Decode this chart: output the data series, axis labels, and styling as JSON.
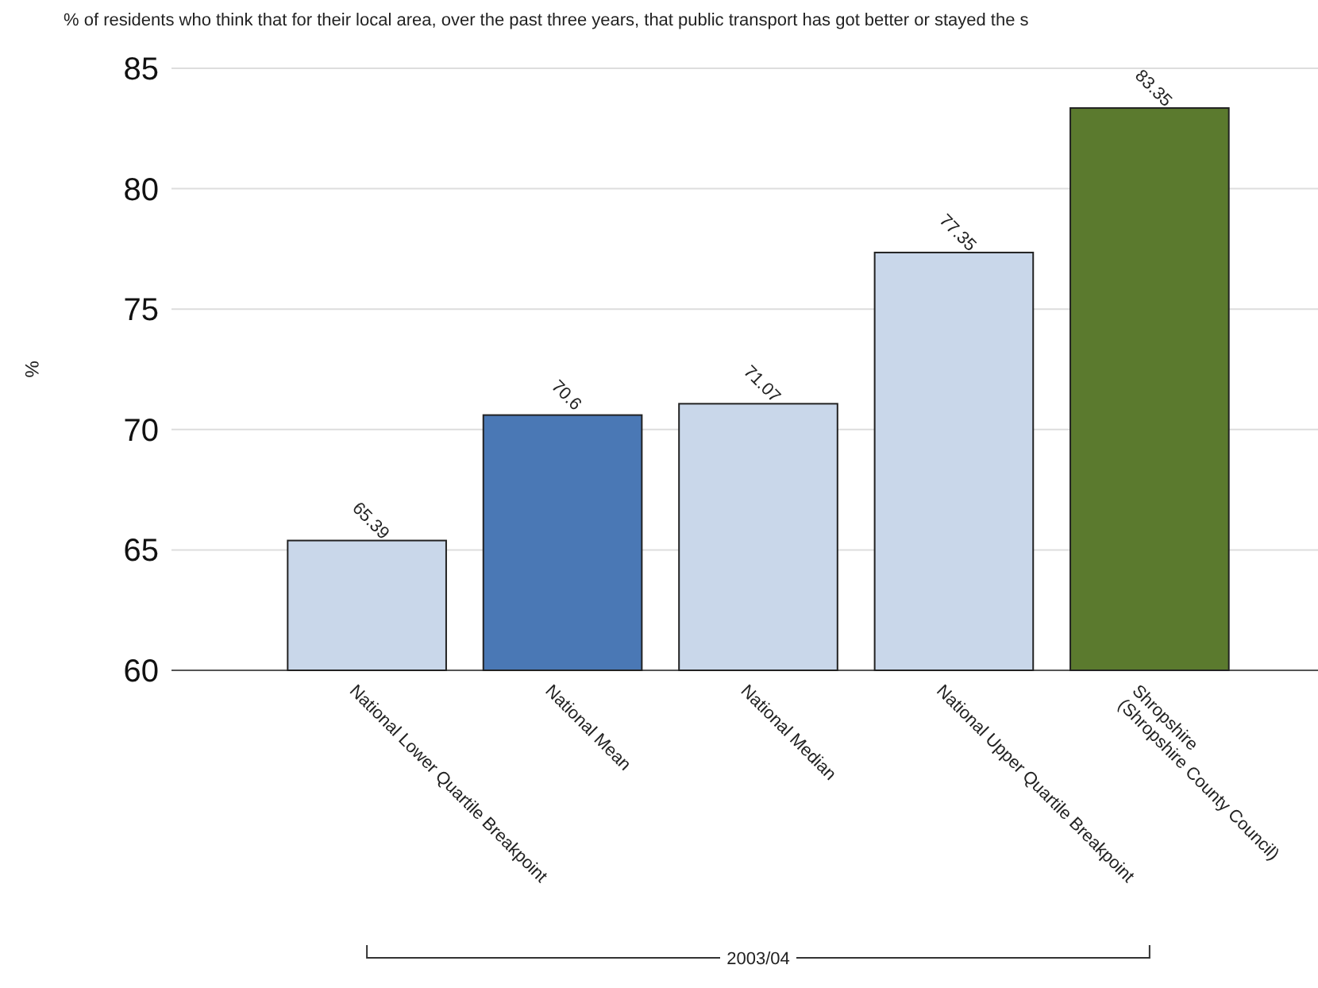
{
  "chart_data": {
    "type": "bar",
    "title": "% of residents who think that for their local area, over the past three years, that public transport has got better or stayed the s",
    "ylabel": "%",
    "categories": [
      "National Lower Quartile Breakpoint",
      "National Mean",
      "National Median",
      "National Upper Quartile Breakpoint",
      "Shropshire\n(Shropshire County Council)"
    ],
    "values": [
      65.39,
      70.6,
      71.07,
      77.35,
      83.35
    ],
    "colors": [
      "#c9d7ea",
      "#4a78b5",
      "#c9d7ea",
      "#c9d7ea",
      "#5b7a2e"
    ],
    "ylim": [
      60,
      85
    ],
    "yticks": [
      60,
      65,
      70,
      75,
      80,
      85
    ],
    "grid": "y",
    "data_labels": true,
    "annotations": [
      "2003/04"
    ]
  }
}
